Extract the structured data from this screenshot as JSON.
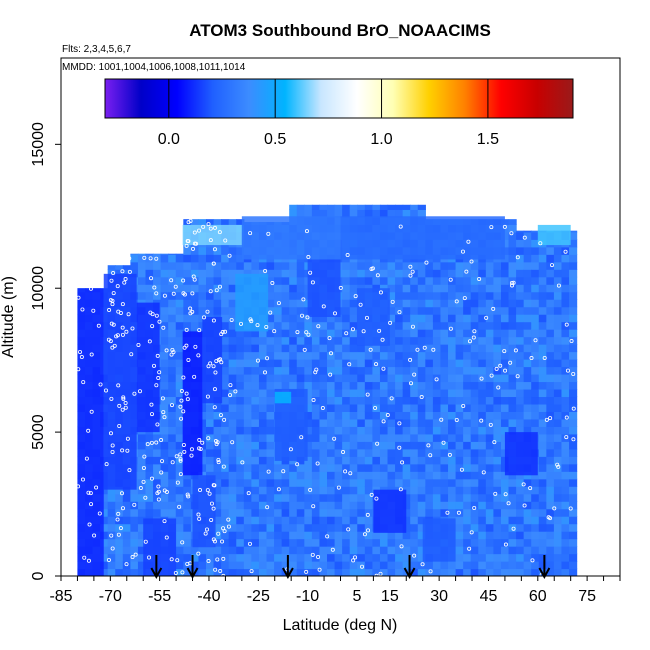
{
  "chart_data": {
    "type": "heatmap",
    "title": "ATOM3 Southbound BrO_NOAACIMS",
    "subtitle_flights": "Flts: 2,3,4,5,6,7",
    "subtitle_dates": "MMDD: 1001,1004,1006,1008,1011,1014",
    "xlabel": "Latitude (deg N)",
    "ylabel": "Altitude (m)",
    "xlim": [
      -85,
      85
    ],
    "ylim": [
      0,
      18000
    ],
    "xticks": [
      -85,
      -70,
      -55,
      -40,
      -25,
      -10,
      5,
      15,
      30,
      45,
      60,
      75
    ],
    "yticks": [
      0,
      5000,
      10000,
      15000
    ],
    "colorbar": {
      "range": [
        -0.3,
        1.9
      ],
      "ticks": [
        0.0,
        0.5,
        1.0,
        1.5
      ],
      "colors": [
        "#7a1ff0",
        "#0000c8",
        "#0000ff",
        "#2060ff",
        "#3c8cff",
        "#00b4ff",
        "#c8e6ff",
        "#ffffff",
        "#ffffb4",
        "#ffd000",
        "#ff8000",
        "#ff0000",
        "#c80000",
        "#9a1a1a"
      ]
    },
    "background_value": 0.3,
    "grid_cells": [
      {
        "lat": [
          -80,
          -72
        ],
        "alt": [
          0,
          10000
        ],
        "value": 0.1
      },
      {
        "lat": [
          -72,
          -62
        ],
        "alt": [
          3000,
          10500
        ],
        "value": 0.15
      },
      {
        "lat": [
          -62,
          -55
        ],
        "alt": [
          5000,
          9500
        ],
        "value": 0.12
      },
      {
        "lat": [
          -48,
          -42
        ],
        "alt": [
          3500,
          8500
        ],
        "value": 0.08
      },
      {
        "lat": [
          -42,
          -36
        ],
        "alt": [
          6000,
          9000
        ],
        "value": 0.15
      },
      {
        "lat": [
          -60,
          -50
        ],
        "alt": [
          0,
          2000
        ],
        "value": 0.15
      },
      {
        "lat": [
          -45,
          -38
        ],
        "alt": [
          1000,
          3500
        ],
        "value": 0.18
      },
      {
        "lat": [
          -20,
          -10
        ],
        "alt": [
          4000,
          6500
        ],
        "value": 0.2
      },
      {
        "lat": [
          -10,
          0
        ],
        "alt": [
          9000,
          11000
        ],
        "value": 0.18
      },
      {
        "lat": [
          10,
          20
        ],
        "alt": [
          1500,
          3000
        ],
        "value": 0.12
      },
      {
        "lat": [
          5,
          15
        ],
        "alt": [
          8000,
          10000
        ],
        "value": 0.2
      },
      {
        "lat": [
          50,
          60
        ],
        "alt": [
          3500,
          5000
        ],
        "value": 0.12
      },
      {
        "lat": [
          25,
          35
        ],
        "alt": [
          500,
          2000
        ],
        "value": 0.2
      },
      {
        "lat": [
          -32,
          -22
        ],
        "alt": [
          8500,
          10500
        ],
        "value": 0.45
      },
      {
        "lat": [
          -48,
          -30
        ],
        "alt": [
          11500,
          12200
        ],
        "value": 0.65
      },
      {
        "lat": [
          -30,
          0
        ],
        "alt": [
          11000,
          12500
        ],
        "value": 0.3
      },
      {
        "lat": [
          0,
          50
        ],
        "alt": [
          11000,
          12500
        ],
        "value": 0.25
      },
      {
        "lat": [
          -20,
          -15
        ],
        "alt": [
          6000,
          6400
        ],
        "value": 0.55
      },
      {
        "lat": [
          60,
          70
        ],
        "alt": [
          11500,
          12200
        ],
        "value": 0.6
      }
    ],
    "profile_markers_lat": [
      -56,
      -45,
      -16,
      21,
      62
    ]
  }
}
